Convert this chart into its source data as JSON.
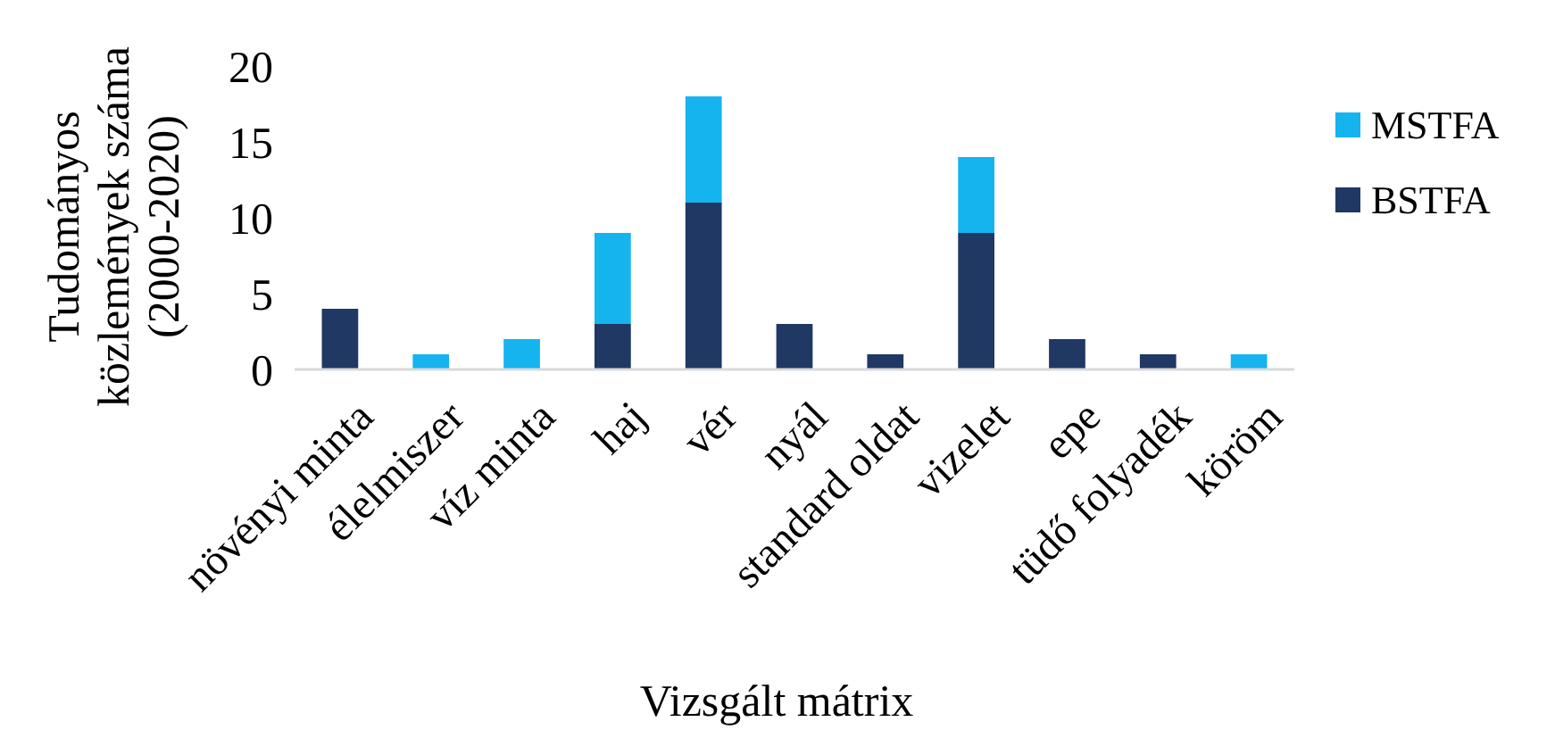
{
  "chart_data": {
    "type": "bar",
    "xlabel": "Vizsgált mátrix",
    "ylabel": "Tudományos közlemények száma (2000-2020)",
    "categories": [
      "növényi minta",
      "élelmiszer",
      "víz minta",
      "haj",
      "vér",
      "nyál",
      "standard oldat",
      "vizelet",
      "epe",
      "tüdő folyadék",
      "köröm"
    ],
    "series": [
      {
        "name": "BSTFA",
        "color": "#203864",
        "values": [
          4,
          0,
          0,
          3,
          11,
          3,
          1,
          9,
          2,
          1,
          0
        ]
      },
      {
        "name": "MSTFA",
        "color": "#15b4ee",
        "values": [
          0,
          1,
          2,
          6,
          7,
          0,
          0,
          5,
          0,
          0,
          1
        ]
      }
    ],
    "stacked": true,
    "ylim": [
      0,
      20
    ],
    "yticks": [
      0,
      5,
      10,
      15,
      20
    ],
    "grid": false,
    "legend": "right"
  }
}
